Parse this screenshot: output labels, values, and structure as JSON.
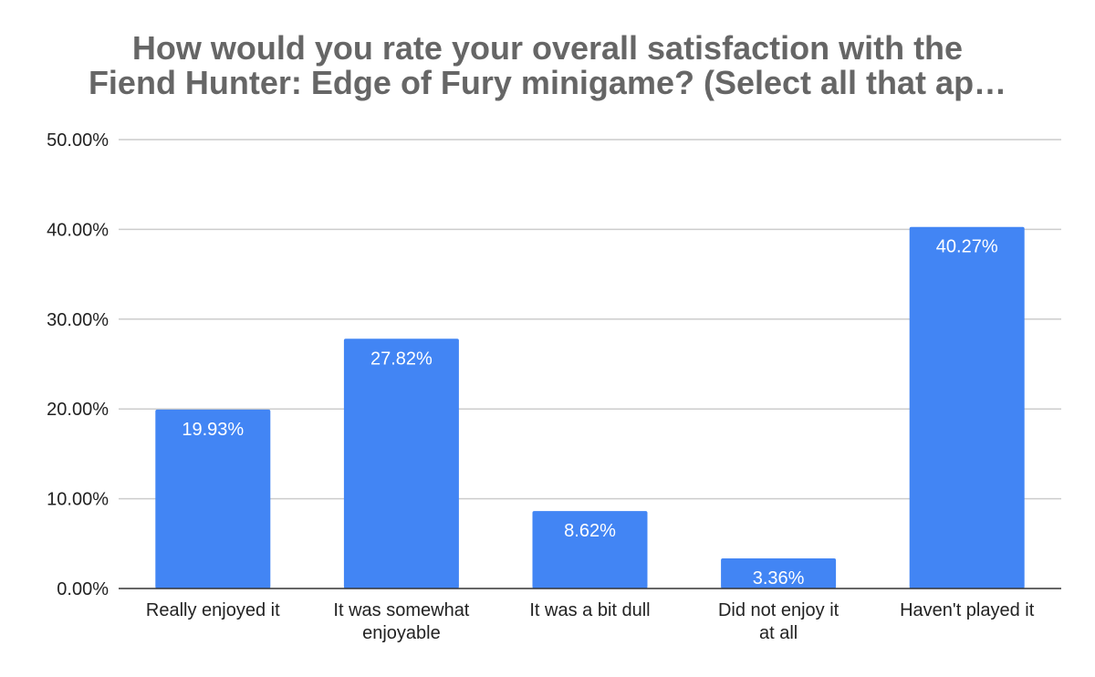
{
  "chart_data": {
    "type": "bar",
    "title_lines": [
      "How would you rate your overall satisfaction with the",
      "Fiend Hunter: Edge of Fury minigame? (Select all that ap…"
    ],
    "categories": [
      [
        "Really enjoyed it"
      ],
      [
        "It was somewhat",
        "enjoyable"
      ],
      [
        "It was a bit dull"
      ],
      [
        "Did not enjoy it",
        "at all"
      ],
      [
        "Haven't played it"
      ]
    ],
    "values": [
      19.93,
      27.82,
      8.62,
      3.36,
      40.27
    ],
    "data_labels": [
      "19.93%",
      "27.82%",
      "8.62%",
      "3.36%",
      "40.27%"
    ],
    "y_ticks": [
      0,
      10,
      20,
      30,
      40,
      50
    ],
    "y_tick_labels": [
      "0.00%",
      "10.00%",
      "20.00%",
      "30.00%",
      "40.00%",
      "50.00%"
    ],
    "ylim": [
      0,
      50
    ],
    "grid": true,
    "legend": "none",
    "bar_color": "#4285f4",
    "grid_color": "#cccccc",
    "axis_color": "#333333",
    "title_color": "#666666"
  }
}
